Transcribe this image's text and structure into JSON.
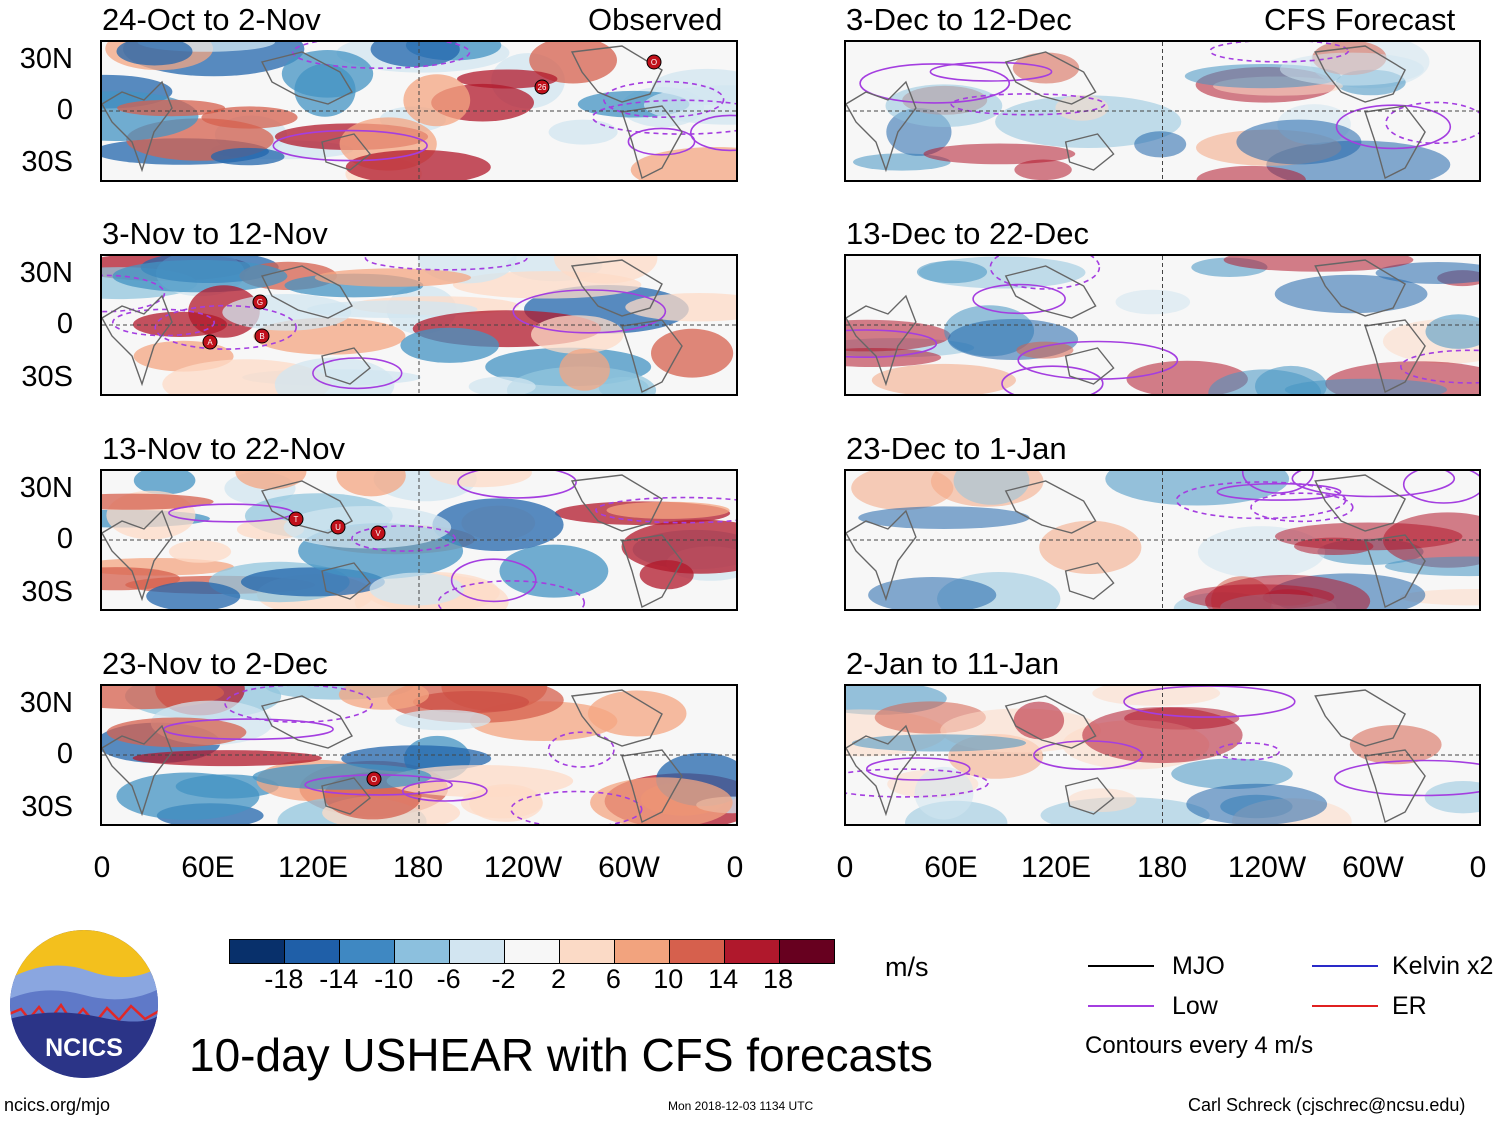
{
  "header": {
    "observed_label": "Observed",
    "forecast_label": "CFS Forecast"
  },
  "panels": [
    {
      "title": "24-Oct to 2-Nov",
      "column": "observed"
    },
    {
      "title": "3-Nov to 12-Nov",
      "column": "observed"
    },
    {
      "title": "13-Nov to 22-Nov",
      "column": "observed"
    },
    {
      "title": "23-Nov to 2-Dec",
      "column": "observed"
    },
    {
      "title": "3-Dec to 12-Dec",
      "column": "forecast"
    },
    {
      "title": "13-Dec to 22-Dec",
      "column": "forecast"
    },
    {
      "title": "23-Dec to 1-Jan",
      "column": "forecast"
    },
    {
      "title": "2-Jan to 11-Jan",
      "column": "forecast"
    }
  ],
  "lat_labels": [
    "30N",
    "0",
    "30S"
  ],
  "lon_labels": [
    "0",
    "60E",
    "120E",
    "180",
    "120W",
    "60W",
    "0"
  ],
  "colorbar": {
    "unit": "m/s",
    "tick_labels": [
      "-18",
      "-14",
      "-10",
      "-6",
      "-2",
      "2",
      "6",
      "10",
      "14",
      "18"
    ],
    "colors": [
      "#08306b",
      "#1f5fa8",
      "#3f88c2",
      "#8cc0de",
      "#d2e5f1",
      "#f7f7f7",
      "#fbdac6",
      "#f2a37e",
      "#d6604d",
      "#b0182c",
      "#67001f"
    ]
  },
  "legend": {
    "items": [
      {
        "label": "MJO",
        "color": "#000000"
      },
      {
        "label": "Kelvin x2",
        "color": "#2a2ac8"
      },
      {
        "label": "Low",
        "color": "#a43ee0"
      },
      {
        "label": "ER",
        "color": "#e02020"
      }
    ],
    "note": "Contours every 4 m/s"
  },
  "main_title": "10-day USHEAR with CFS forecasts",
  "logo_text": "NCICS",
  "footer": {
    "left": "ncics.org/mjo",
    "center": "Mon 2018-12-03 1134 UTC",
    "right": "Carl Schreck (cjschrec@ncsu.edu)"
  },
  "storm_markers": [
    {
      "panel": 0,
      "labels": [
        "26",
        "O"
      ]
    },
    {
      "panel": 1,
      "labels": [
        "A",
        "G",
        "B"
      ]
    },
    {
      "panel": 2,
      "labels": [
        "T",
        "U",
        "V"
      ]
    },
    {
      "panel": 3,
      "labels": [
        "O"
      ]
    }
  ]
}
